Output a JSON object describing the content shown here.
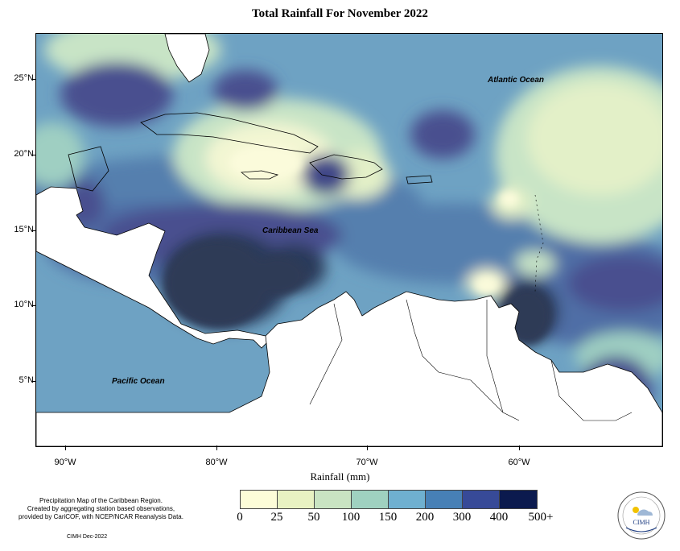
{
  "title": "Total Rainfall For November 2022",
  "x_axis": {
    "label": "Rainfall (mm)",
    "ticks": [
      "90°W",
      "80°W",
      "70°W",
      "60°W"
    ]
  },
  "y_axis": {
    "ticks": [
      "25°N",
      "20°N",
      "15°N",
      "10°N",
      "5°N"
    ]
  },
  "map_labels": {
    "atlantic": "Atlantic Ocean",
    "caribbean": "Caribbean Sea",
    "pacific": "Pacific Ocean"
  },
  "legend": {
    "labels": [
      "0",
      "25",
      "50",
      "100",
      "150",
      "200",
      "300",
      "400",
      "500+"
    ],
    "colors": [
      "#fdfdd8",
      "#e8f2c2",
      "#c9e4c2",
      "#9fd1c0",
      "#6fb0d0",
      "#4780b6",
      "#374a98",
      "#26307a",
      "#0b1a4e"
    ]
  },
  "footnote": {
    "line1": "Precipitation Map of the Caribbean Region.",
    "line2": "Created by aggregating station based observations,",
    "line3": "provided by CariCOF, with NCEP/NCAR Reanalysis Data.",
    "credit": "CIMH Dec-2022"
  },
  "logo": {
    "text": "CIMH"
  }
}
